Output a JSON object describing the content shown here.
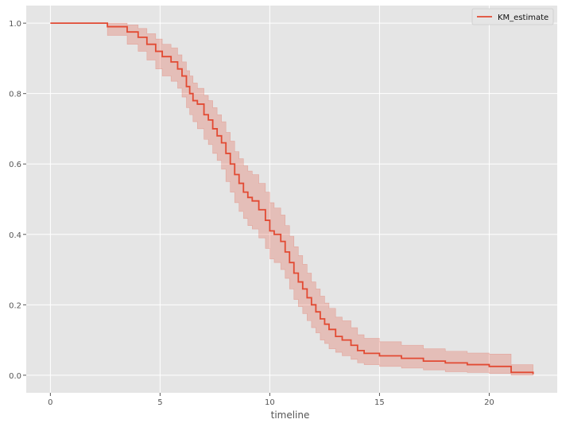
{
  "chart_data": {
    "type": "line",
    "title": "",
    "xlabel": "timeline",
    "ylabel": "",
    "xlim": [
      -1.1,
      23.1
    ],
    "ylim": [
      -0.05,
      1.05
    ],
    "x_ticks": [
      0,
      5,
      10,
      15,
      20
    ],
    "x_tick_labels": [
      "0",
      "5",
      "10",
      "15",
      "20"
    ],
    "y_ticks": [
      0.0,
      0.2,
      0.4,
      0.6,
      0.8,
      1.0
    ],
    "y_tick_labels": [
      "0.0",
      "0.2",
      "0.4",
      "0.6",
      "0.8",
      "1.0"
    ],
    "grid": true,
    "legend": {
      "position": "top-right",
      "entries": [
        "KM_estimate"
      ]
    },
    "colors": {
      "line": "#e24a33",
      "band": "#e24a33",
      "background": "#e5e5e5",
      "grid": "#ffffff"
    },
    "series": [
      {
        "name": "KM_estimate",
        "step": "post",
        "x": [
          0,
          2.6,
          3.5,
          4.0,
          4.4,
          4.8,
          5.1,
          5.5,
          5.8,
          6.0,
          6.2,
          6.35,
          6.5,
          6.7,
          7.0,
          7.2,
          7.4,
          7.6,
          7.8,
          8.0,
          8.2,
          8.4,
          8.6,
          8.8,
          9.0,
          9.2,
          9.5,
          9.8,
          10.0,
          10.2,
          10.5,
          10.7,
          10.9,
          11.1,
          11.3,
          11.5,
          11.7,
          11.9,
          12.1,
          12.3,
          12.5,
          12.7,
          13.0,
          13.3,
          13.7,
          14.0,
          14.3,
          15.0,
          16.0,
          17.0,
          18.0,
          19.0,
          20.0,
          21.0,
          22.0
        ],
        "y": [
          1.0,
          0.99,
          0.975,
          0.96,
          0.94,
          0.92,
          0.905,
          0.89,
          0.87,
          0.85,
          0.82,
          0.8,
          0.78,
          0.77,
          0.74,
          0.725,
          0.7,
          0.68,
          0.66,
          0.63,
          0.6,
          0.57,
          0.545,
          0.52,
          0.505,
          0.495,
          0.47,
          0.44,
          0.41,
          0.4,
          0.38,
          0.35,
          0.32,
          0.29,
          0.265,
          0.245,
          0.22,
          0.2,
          0.18,
          0.16,
          0.145,
          0.13,
          0.11,
          0.1,
          0.085,
          0.07,
          0.062,
          0.055,
          0.048,
          0.04,
          0.035,
          0.03,
          0.025,
          0.008,
          0.003
        ],
        "ci_lower": [
          1.0,
          0.965,
          0.94,
          0.92,
          0.895,
          0.87,
          0.85,
          0.835,
          0.815,
          0.79,
          0.76,
          0.74,
          0.72,
          0.7,
          0.67,
          0.655,
          0.63,
          0.61,
          0.585,
          0.55,
          0.52,
          0.49,
          0.465,
          0.445,
          0.425,
          0.415,
          0.39,
          0.36,
          0.33,
          0.32,
          0.3,
          0.275,
          0.245,
          0.215,
          0.195,
          0.175,
          0.155,
          0.135,
          0.12,
          0.1,
          0.09,
          0.075,
          0.065,
          0.055,
          0.045,
          0.035,
          0.03,
          0.025,
          0.02,
          0.015,
          0.01,
          0.008,
          0.005,
          0.0,
          0.0
        ],
        "ci_upper": [
          1.0,
          1.0,
          0.995,
          0.985,
          0.97,
          0.955,
          0.94,
          0.93,
          0.91,
          0.89,
          0.865,
          0.85,
          0.83,
          0.815,
          0.795,
          0.78,
          0.76,
          0.74,
          0.72,
          0.69,
          0.665,
          0.635,
          0.615,
          0.595,
          0.58,
          0.57,
          0.545,
          0.52,
          0.49,
          0.475,
          0.455,
          0.425,
          0.395,
          0.365,
          0.34,
          0.315,
          0.29,
          0.265,
          0.245,
          0.225,
          0.205,
          0.19,
          0.165,
          0.155,
          0.135,
          0.115,
          0.105,
          0.095,
          0.085,
          0.075,
          0.068,
          0.063,
          0.06,
          0.03,
          0.02
        ]
      }
    ]
  }
}
